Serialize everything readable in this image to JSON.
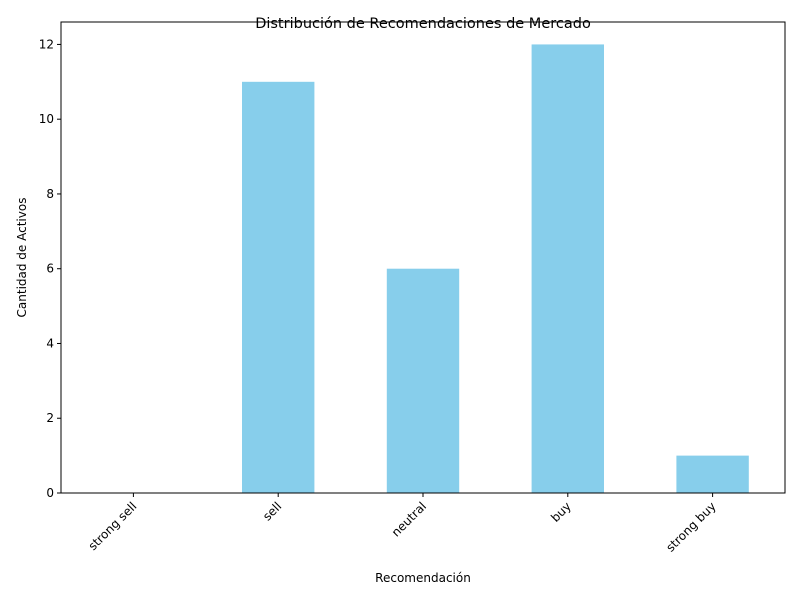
{
  "chart_data": {
    "type": "bar",
    "title": "Distribución de Recomendaciones de Mercado",
    "xlabel": "Recomendación",
    "ylabel": "Cantidad de Activos",
    "categories": [
      "strong sell",
      "sell",
      "neutral",
      "buy",
      "strong buy"
    ],
    "values": [
      0,
      11,
      6,
      12,
      1
    ],
    "ylim": [
      0,
      12.6
    ],
    "yticks": [
      0,
      2,
      4,
      6,
      8,
      10,
      12
    ],
    "bar_color": "#87CEEB",
    "grid": false,
    "legend": "none"
  }
}
